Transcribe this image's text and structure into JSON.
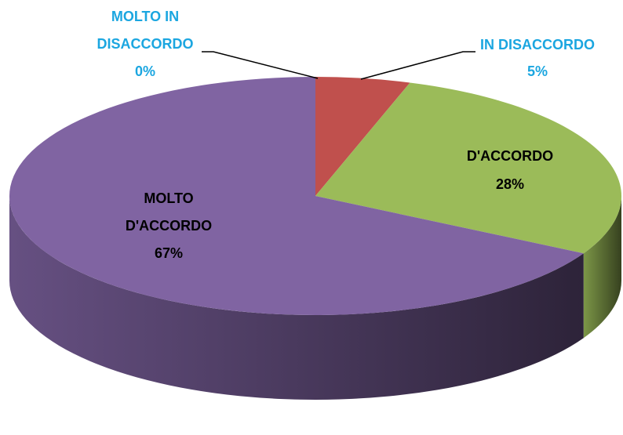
{
  "chart_data": {
    "type": "pie",
    "categories": [
      "MOLTO IN DISACCORDO",
      "IN DISACCORDO",
      "D'ACCORDO",
      "MOLTO D'ACCORDO"
    ],
    "values": [
      0,
      5,
      28,
      67
    ],
    "value_labels": [
      "0%",
      "5%",
      "28%",
      "67%"
    ],
    "colors": [
      "#4f81bd",
      "#c0504d",
      "#9bbb59",
      "#8064a2"
    ]
  }
}
